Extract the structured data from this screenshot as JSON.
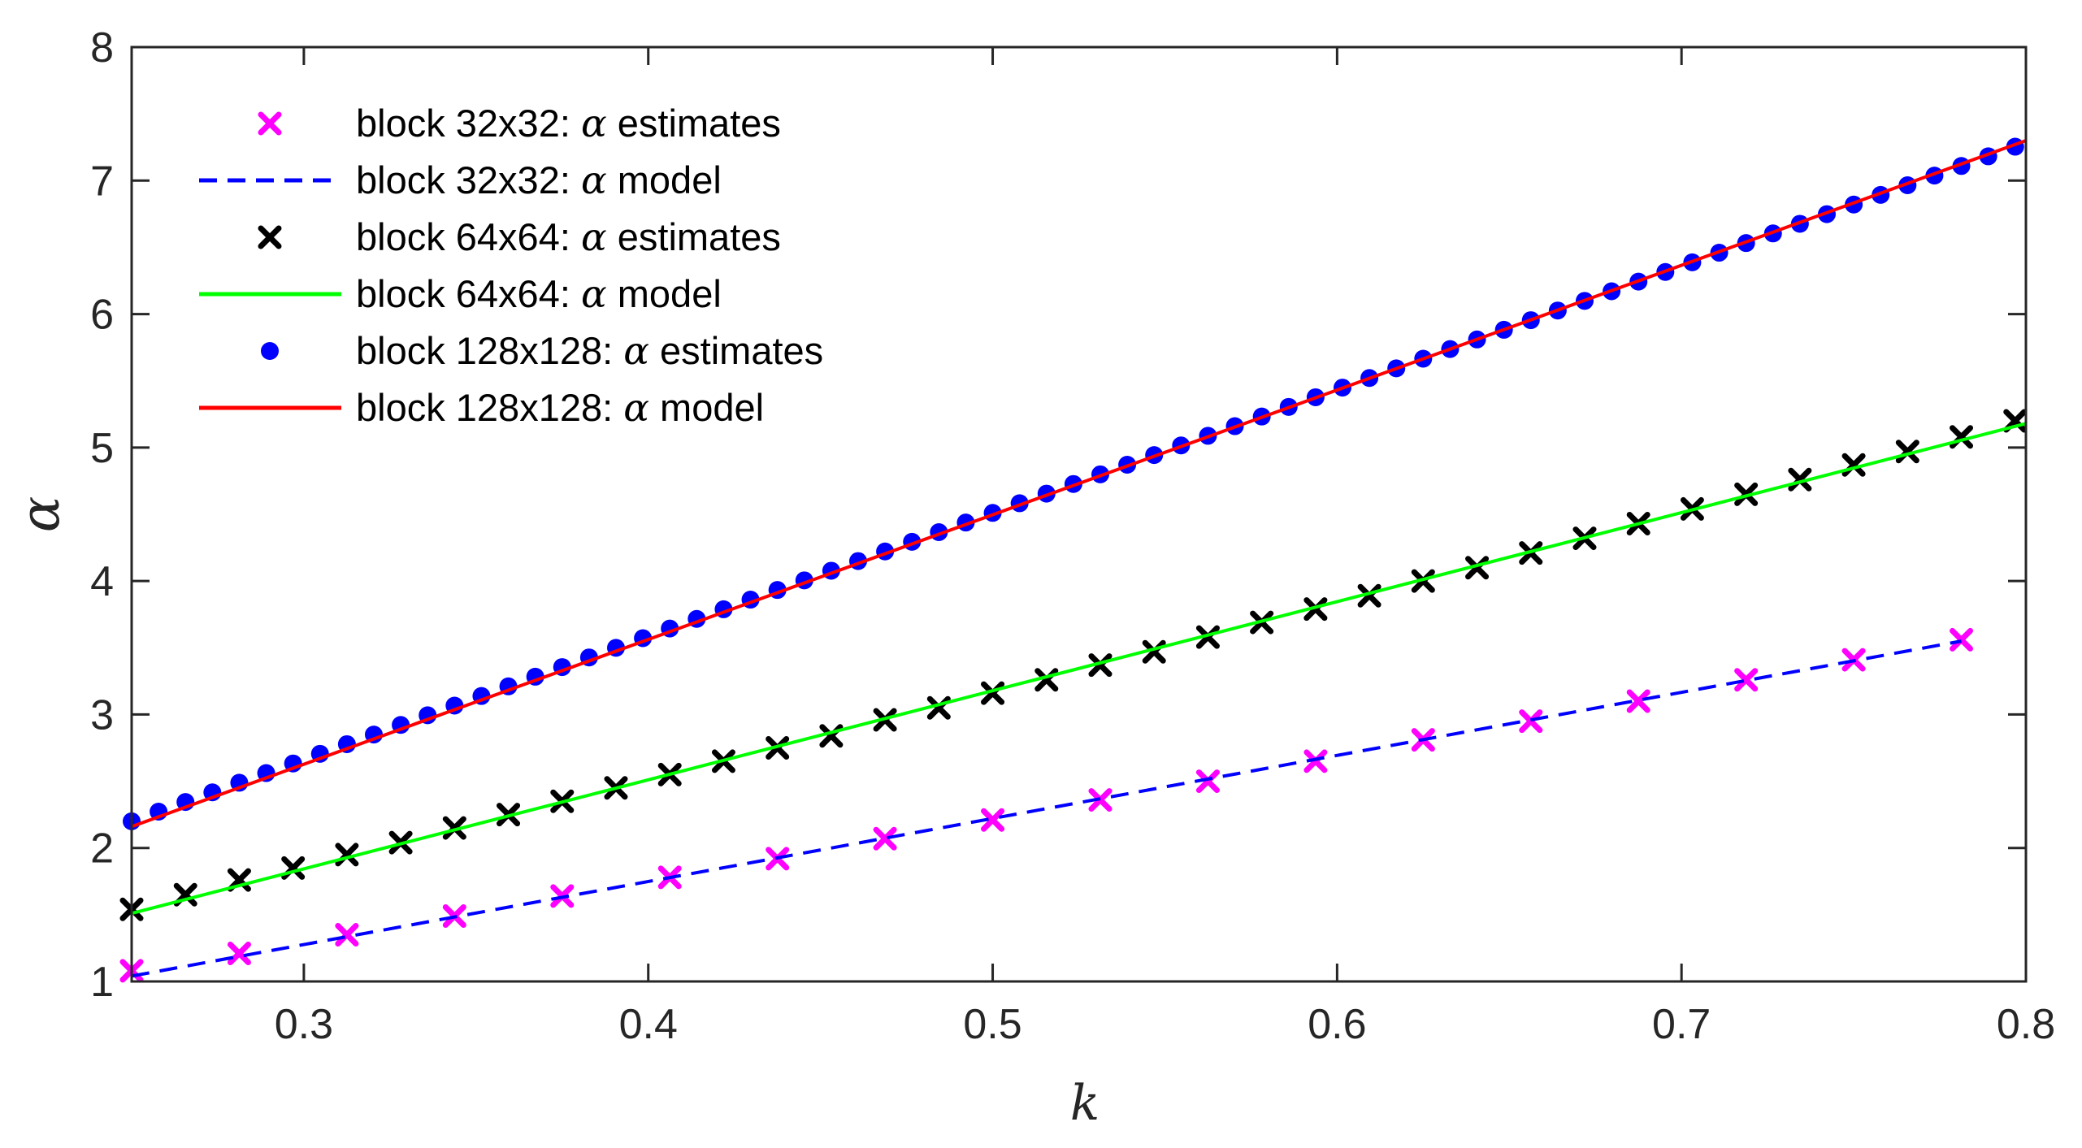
{
  "chart_data": {
    "type": "scatter",
    "title": "",
    "xlabel": "k",
    "ylabel": "α",
    "xlim": [
      0.25,
      0.8
    ],
    "ylim": [
      1,
      8
    ],
    "xticks": [
      0.3,
      0.4,
      0.5,
      0.6,
      0.7,
      0.8
    ],
    "xtick_labels": [
      "0.3",
      "0.4",
      "0.5",
      "0.6",
      "0.7",
      "0.8"
    ],
    "yticks": [
      1,
      2,
      3,
      4,
      5,
      6,
      7,
      8
    ],
    "ytick_labels": [
      "1",
      "2",
      "3",
      "4",
      "5",
      "6",
      "7",
      "8"
    ],
    "grid": false,
    "legend_position": "top-left",
    "colors": {
      "magenta": "#ff00ff",
      "blue_dash": "#0000ff",
      "black": "#000000",
      "green": "#00ff00",
      "blue_dot": "#0000ff",
      "red": "#ff0000"
    },
    "series": [
      {
        "name": "block 32x32: α estimates",
        "label_prefix": "block 32x32: ",
        "label_suffix": " estimates",
        "marker": "x",
        "color": "#ff00ff",
        "x": [
          0.25,
          0.28125,
          0.3125,
          0.34375,
          0.375,
          0.40625,
          0.4375,
          0.46875,
          0.5,
          0.53125,
          0.5625,
          0.59375,
          0.625,
          0.65625,
          0.6875,
          0.71875,
          0.75,
          0.78125
        ],
        "y": [
          1.08,
          1.21,
          1.35,
          1.49,
          1.64,
          1.78,
          1.92,
          2.07,
          2.21,
          2.36,
          2.5,
          2.65,
          2.81,
          2.95,
          3.1,
          3.26,
          3.41,
          3.56
        ]
      },
      {
        "name": "block 32x32: α model",
        "label_prefix": "block 32x32: ",
        "label_suffix": " model",
        "line": "dashed",
        "color": "#0000ff",
        "x": [
          0.25,
          0.78125
        ],
        "y": [
          1.04,
          3.55
        ]
      },
      {
        "name": "block 64x64: α estimates",
        "label_prefix": "block 64x64: ",
        "label_suffix": " estimates",
        "marker": "x",
        "color": "#000000",
        "x": [
          0.25,
          0.265625,
          0.28125,
          0.296875,
          0.3125,
          0.328125,
          0.34375,
          0.359375,
          0.375,
          0.390625,
          0.40625,
          0.421875,
          0.4375,
          0.453125,
          0.46875,
          0.484375,
          0.5,
          0.515625,
          0.53125,
          0.546875,
          0.5625,
          0.578125,
          0.59375,
          0.609375,
          0.625,
          0.640625,
          0.65625,
          0.671875,
          0.6875,
          0.703125,
          0.71875,
          0.734375,
          0.75,
          0.765625,
          0.78125,
          0.796875
        ],
        "y": [
          1.54,
          1.65,
          1.76,
          1.85,
          1.95,
          2.04,
          2.15,
          2.25,
          2.35,
          2.45,
          2.55,
          2.65,
          2.75,
          2.84,
          2.96,
          3.05,
          3.16,
          3.26,
          3.37,
          3.47,
          3.58,
          3.69,
          3.79,
          3.89,
          4.0,
          4.1,
          4.21,
          4.32,
          4.43,
          4.54,
          4.65,
          4.76,
          4.87,
          4.97,
          5.08,
          5.2
        ]
      },
      {
        "name": "block 64x64: α model",
        "label_prefix": "block 64x64: ",
        "label_suffix": " model",
        "line": "solid",
        "color": "#00ff00",
        "x": [
          0.25,
          0.8
        ],
        "y": [
          1.51,
          5.18
        ]
      },
      {
        "name": "block 128x128: α estimates",
        "label_prefix": "block 128x128: ",
        "label_suffix": " estimates",
        "marker": "o",
        "color": "#0000ff",
        "x_start": 0.25,
        "x_step": 0.0078125,
        "y_start": 2.2,
        "y_step": 0.0722,
        "count": 71
      },
      {
        "name": "block 128x128: α model",
        "label_prefix": "block 128x128: ",
        "label_suffix": " model",
        "line": "solid",
        "color": "#ff0000",
        "x": [
          0.25,
          0.8
        ],
        "y": [
          2.16,
          7.3
        ]
      }
    ]
  }
}
